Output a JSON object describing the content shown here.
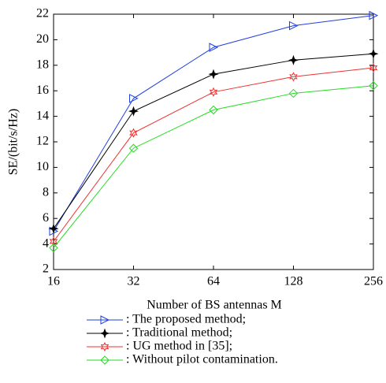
{
  "chart_data": {
    "type": "line",
    "xlabel": "Number of BS antennas M",
    "ylabel": "SE/(bit/s/Hz)",
    "categories": [
      "16",
      "32",
      "64",
      "128",
      "256"
    ],
    "ylim": [
      2,
      22
    ],
    "yticks": [
      2,
      4,
      6,
      8,
      10,
      12,
      14,
      16,
      18,
      20,
      22
    ],
    "grid": false,
    "legend": "bottom",
    "series": [
      {
        "name": ": The proposed method;",
        "color": "#1f3fe0",
        "marker": "triangle-right",
        "values": [
          5.0,
          15.4,
          19.4,
          21.1,
          21.9
        ]
      },
      {
        "name": ": Traditional method;",
        "color": "#000000",
        "marker": "star",
        "values": [
          5.2,
          14.4,
          17.3,
          18.4,
          18.9
        ]
      },
      {
        "name": ": UG method in [35];",
        "color": "#f03030",
        "marker": "hexagram",
        "values": [
          4.2,
          12.7,
          15.9,
          17.1,
          17.8
        ]
      },
      {
        "name": ": Without pilot contamination.",
        "color": "#22dd22",
        "marker": "diamond",
        "values": [
          3.7,
          11.5,
          14.5,
          15.8,
          16.4
        ]
      }
    ]
  }
}
